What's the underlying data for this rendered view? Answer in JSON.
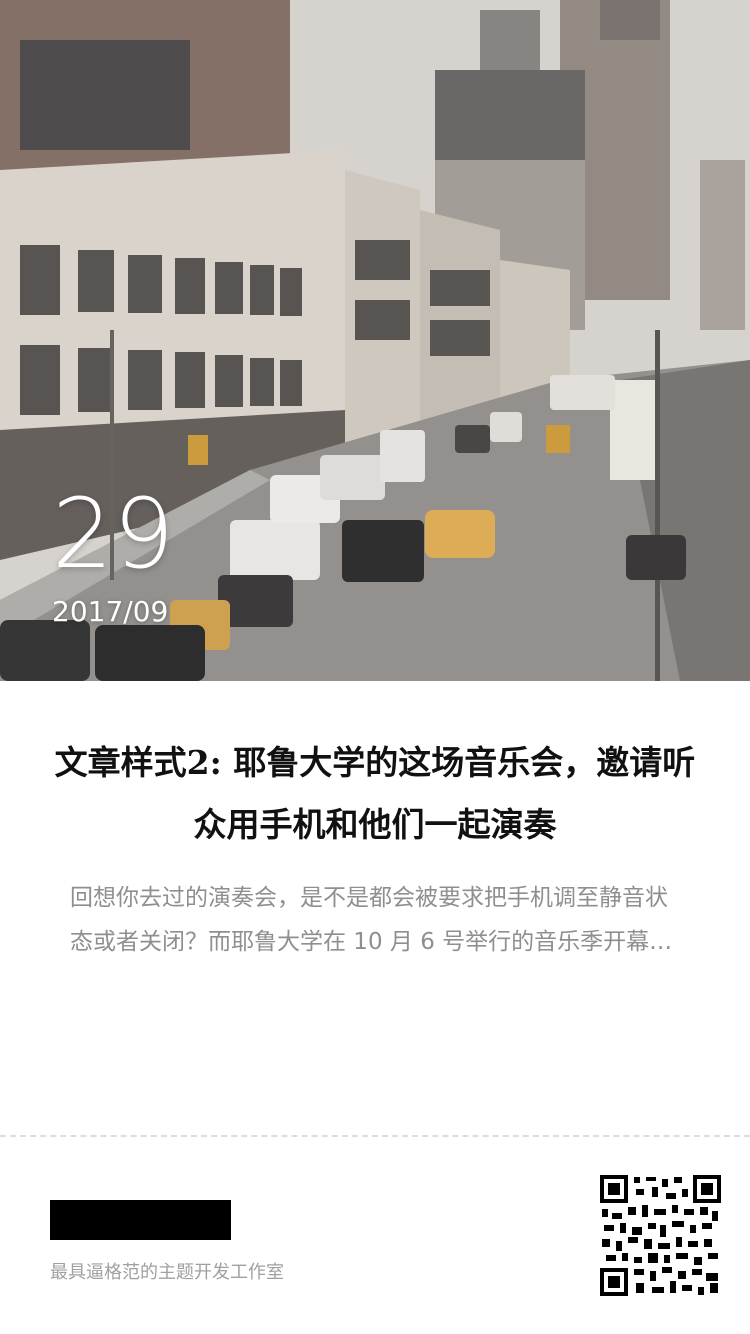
{
  "hero": {
    "image_description_icon": "city-street-photo",
    "date_day": "29",
    "date_year_month": "2017/09"
  },
  "article": {
    "title": "文章样式2: 耶鲁大学的这场音乐会，邀请听众用手机和他们一起演奏",
    "excerpt": "回想你去过的演奏会，是不是都会被要求把手机调至静音状态或者关闭？而耶鲁大学在 10 月 6 号举行的音乐季开幕…"
  },
  "footer": {
    "tagline": "最具逼格范的主题开发工作室",
    "qr_icon": "qr-code-icon"
  },
  "colors": {
    "title": "#111111",
    "excerpt": "#8f8f8f",
    "tagline": "#a0a0a0",
    "divider": "#dcdcdc"
  }
}
